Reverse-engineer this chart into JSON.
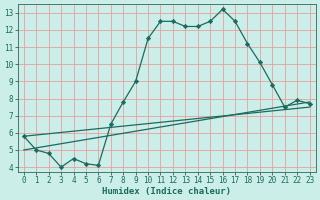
{
  "xlabel": "Humidex (Indice chaleur)",
  "background_color": "#cceee8",
  "grid_color": "#e8a0a0",
  "line_color": "#1a6b60",
  "xlim": [
    -0.5,
    23.5
  ],
  "ylim": [
    3.7,
    13.5
  ],
  "xticks": [
    0,
    1,
    2,
    3,
    4,
    5,
    6,
    7,
    8,
    9,
    10,
    11,
    12,
    13,
    14,
    15,
    16,
    17,
    18,
    19,
    20,
    21,
    22,
    23
  ],
  "yticks": [
    4,
    5,
    6,
    7,
    8,
    9,
    10,
    11,
    12,
    13
  ],
  "line1_x": [
    0,
    1,
    2,
    3,
    4,
    5,
    6,
    7,
    8,
    9,
    10,
    11,
    12,
    13,
    14,
    15,
    16,
    17,
    18,
    19,
    20,
    21,
    22,
    23
  ],
  "line1_y": [
    5.8,
    5.0,
    4.8,
    4.0,
    4.5,
    4.2,
    4.1,
    6.5,
    7.8,
    9.0,
    11.5,
    12.5,
    12.5,
    12.2,
    12.2,
    12.5,
    13.2,
    12.5,
    11.2,
    10.1,
    8.8,
    7.5,
    7.9,
    7.7
  ],
  "line2_x": [
    0,
    23
  ],
  "line2_y": [
    5.0,
    7.8
  ],
  "line3_x": [
    0,
    23
  ],
  "line3_y": [
    5.8,
    7.5
  ],
  "marker": "D",
  "markersize": 2.2,
  "linewidth": 0.9,
  "tick_fontsize": 5.5,
  "xlabel_fontsize": 6.5
}
